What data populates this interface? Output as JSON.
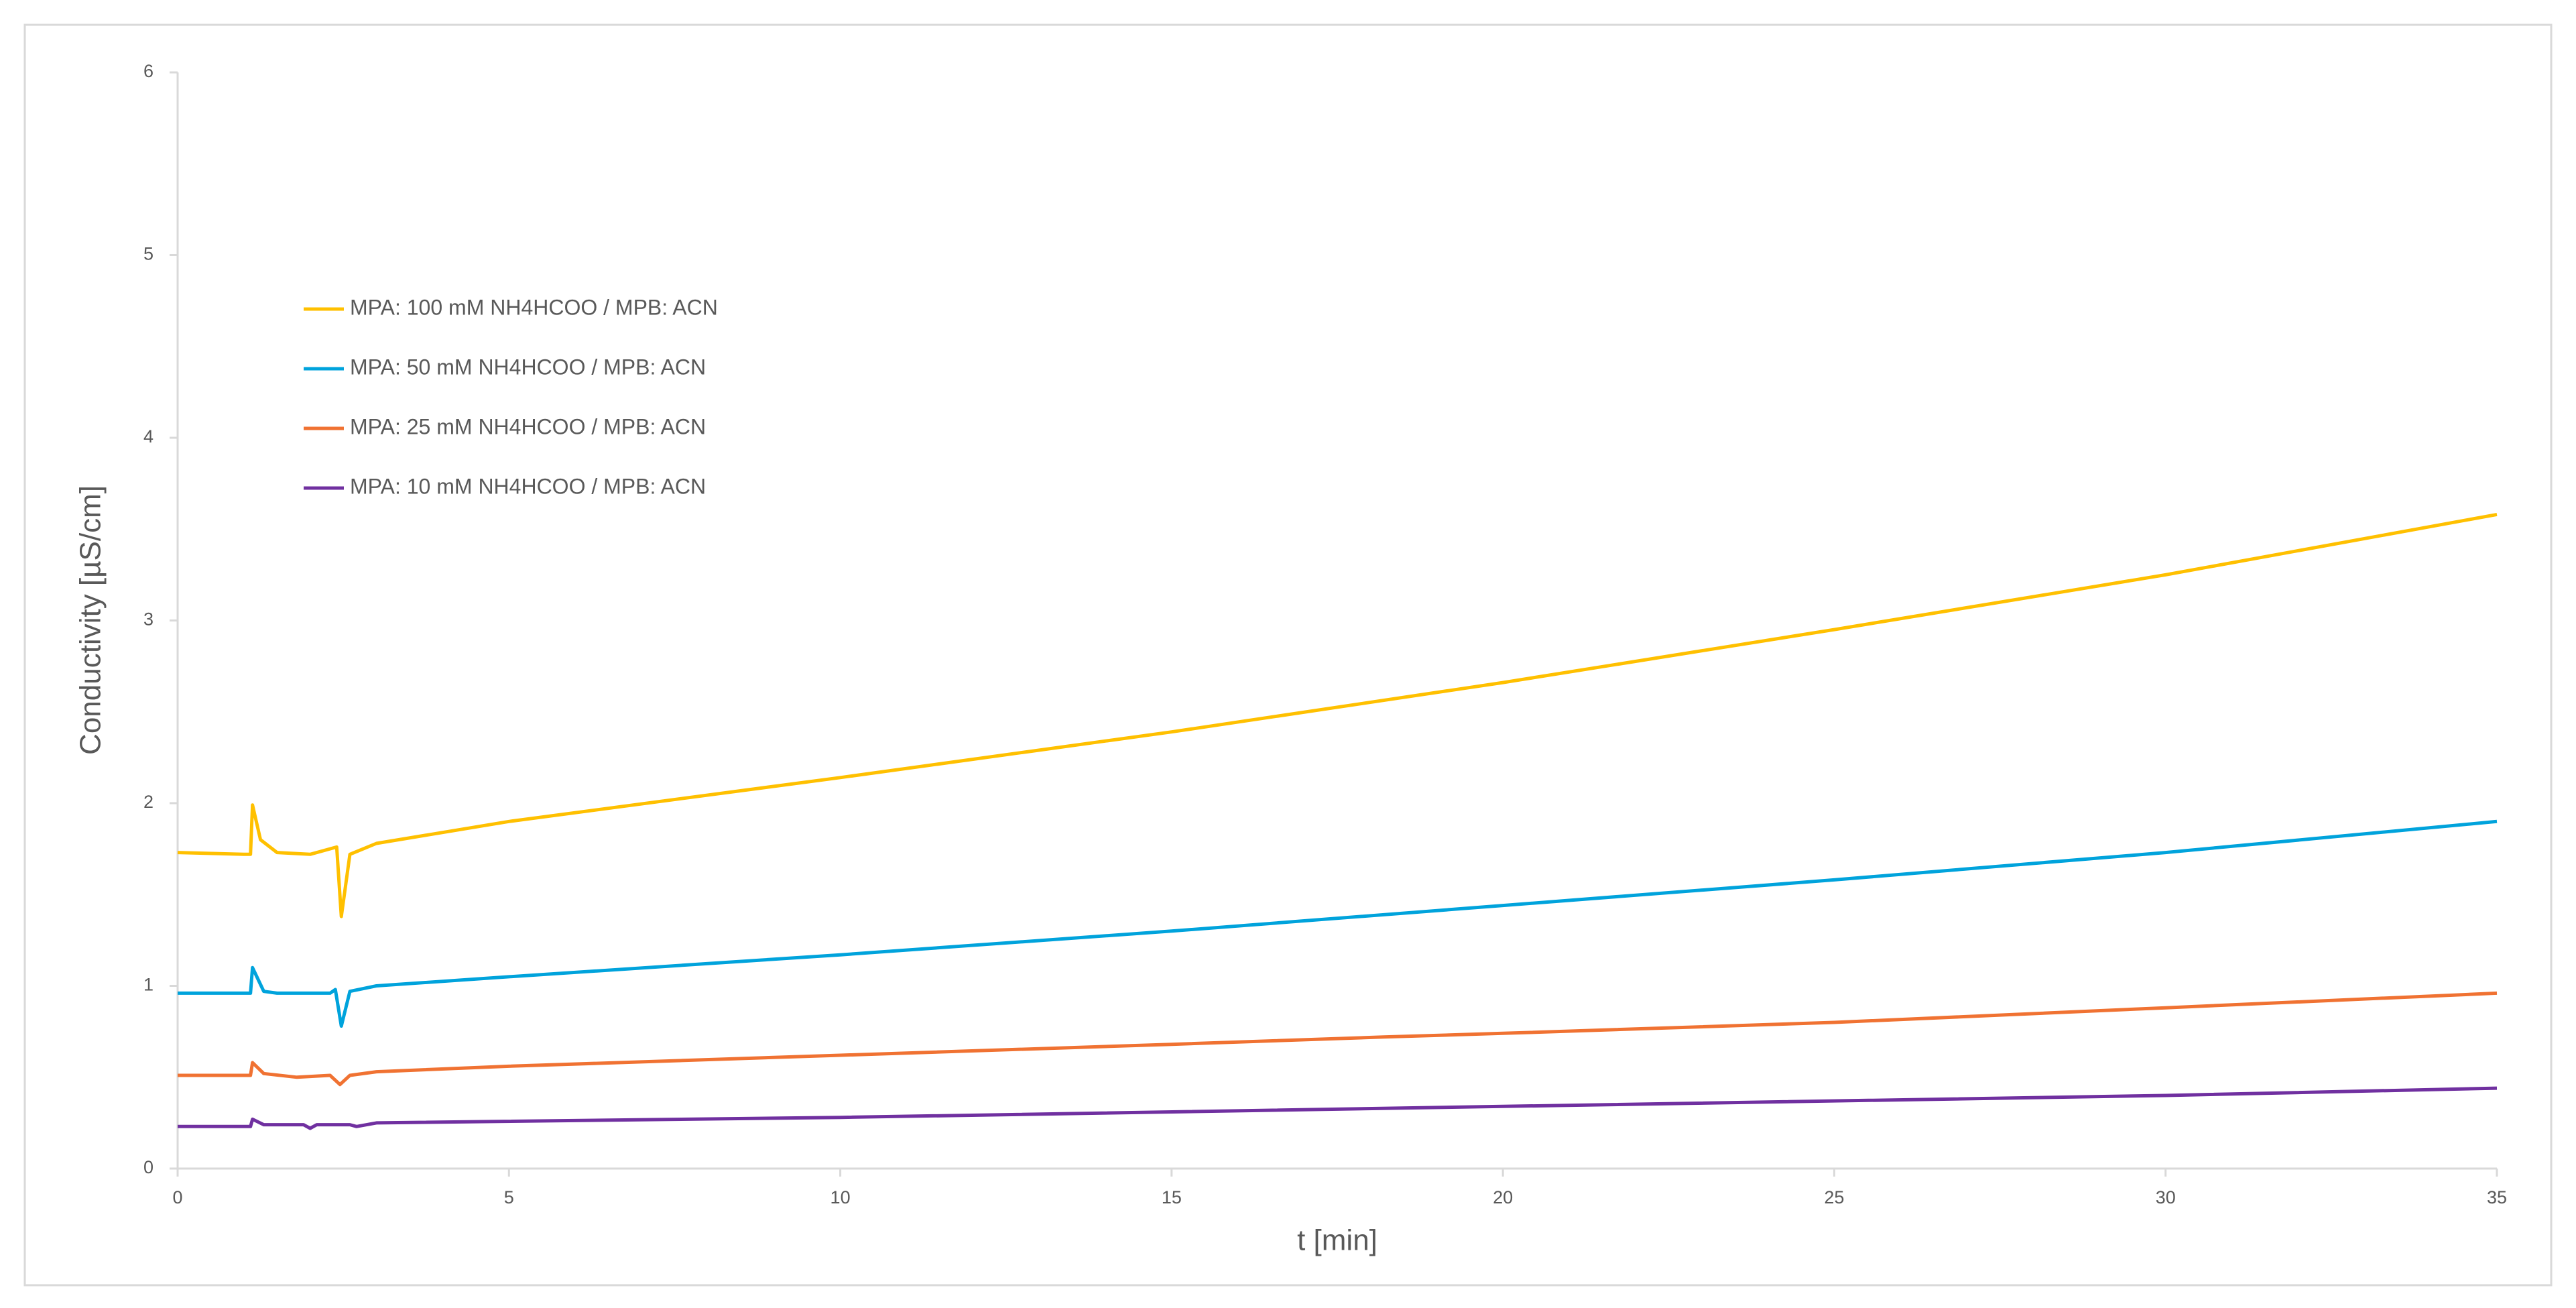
{
  "chart_data": {
    "type": "line",
    "x_label": "t [min]",
    "y_label": "Conductivity [µS/cm]",
    "xlim": [
      0,
      35
    ],
    "xticks": [
      0,
      5,
      10,
      15,
      20,
      25,
      30,
      35
    ],
    "ylim": [
      0,
      6
    ],
    "yticks": [
      0,
      1,
      2,
      3,
      4,
      5,
      6
    ],
    "grid": false,
    "legend": "upper left",
    "series": [
      {
        "name": "MPA: 100 mM NH4HCOO / MPB: ACN",
        "color": "#ffc000",
        "x": [
          0,
          1.0,
          1.1,
          1.13,
          1.25,
          1.5,
          2.0,
          2.4,
          2.47,
          2.6,
          3,
          5,
          10,
          15,
          20,
          25,
          30,
          35
        ],
        "values": [
          1.73,
          1.72,
          1.72,
          1.99,
          1.8,
          1.73,
          1.72,
          1.76,
          1.38,
          1.72,
          1.78,
          1.9,
          2.14,
          2.39,
          2.66,
          2.95,
          3.25,
          3.58
        ]
      },
      {
        "name": "MPA: 50 mM NH4HCOO / MPB: ACN",
        "color": "#00a3dc",
        "x": [
          0,
          1.1,
          1.13,
          1.3,
          1.5,
          2.3,
          2.38,
          2.47,
          2.6,
          3,
          5,
          10,
          15,
          20,
          25,
          30,
          35
        ],
        "values": [
          0.96,
          0.96,
          1.1,
          0.97,
          0.96,
          0.96,
          0.98,
          0.78,
          0.97,
          1.0,
          1.05,
          1.17,
          1.3,
          1.44,
          1.58,
          1.73,
          1.9
        ]
      },
      {
        "name": "MPA: 25 mM NH4HCOO / MPB: ACN",
        "color": "#f07232",
        "x": [
          0,
          1.1,
          1.13,
          1.3,
          1.8,
          2.3,
          2.45,
          2.6,
          3,
          5,
          10,
          15,
          18.2,
          20,
          25,
          30,
          35
        ],
        "values": [
          0.51,
          0.51,
          0.58,
          0.52,
          0.5,
          0.51,
          0.46,
          0.51,
          0.53,
          0.56,
          0.62,
          0.68,
          0.72,
          0.74,
          0.8,
          0.88,
          0.96
        ]
      },
      {
        "name": "MPA: 10 mM NH4HCOO / MPB: ACN",
        "color": "#7030a0",
        "x": [
          0,
          1.1,
          1.13,
          1.3,
          1.9,
          2.0,
          2.1,
          2.6,
          2.7,
          3,
          10,
          20,
          30,
          35
        ],
        "values": [
          0.23,
          0.23,
          0.27,
          0.24,
          0.24,
          0.22,
          0.24,
          0.24,
          0.23,
          0.25,
          0.28,
          0.34,
          0.4,
          0.44
        ]
      }
    ]
  }
}
